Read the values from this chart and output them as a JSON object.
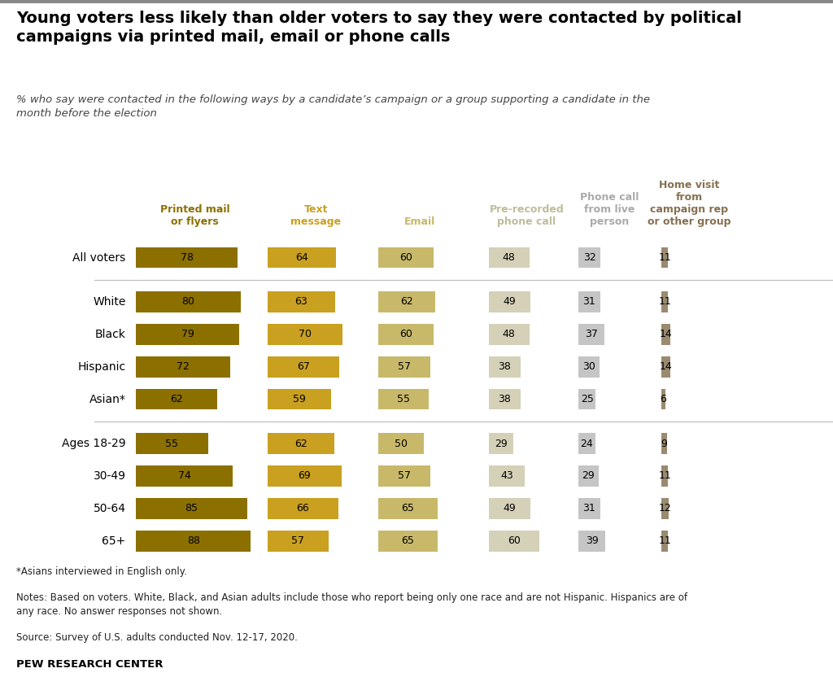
{
  "title": "Young voters less likely than older voters to say they were contacted by political\ncampaigns via printed mail, email or phone calls",
  "subtitle": "% who say were contacted in the following ways by a candidate’s campaign or a group supporting a candidate in the\nmonth before the election",
  "categories": [
    "All voters",
    "White",
    "Black",
    "Hispanic",
    "Asian*",
    "Ages 18-29",
    "30-49",
    "50-64",
    "65+"
  ],
  "column_headers": [
    "Printed mail\nor flyers",
    "Text\nmessage",
    "Email",
    "Pre-recorded\nphone call",
    "Phone call\nfrom live\nperson",
    "Home visit\nfrom\ncampaign rep\nor other group"
  ],
  "col_header_colors": [
    "#8B7000",
    "#C9A020",
    "#C8B86A",
    "#C0BC9C",
    "#AAAAAA",
    "#857050"
  ],
  "data": [
    [
      78,
      64,
      60,
      48,
      32,
      11
    ],
    [
      80,
      63,
      62,
      49,
      31,
      11
    ],
    [
      79,
      70,
      60,
      48,
      37,
      14
    ],
    [
      72,
      67,
      57,
      38,
      30,
      14
    ],
    [
      62,
      59,
      55,
      38,
      25,
      6
    ],
    [
      55,
      62,
      50,
      29,
      24,
      9
    ],
    [
      74,
      69,
      57,
      43,
      29,
      11
    ],
    [
      85,
      66,
      65,
      49,
      31,
      12
    ],
    [
      88,
      57,
      65,
      60,
      39,
      11
    ]
  ],
  "bar_colors": [
    "#8B7000",
    "#C9A020",
    "#C8B86A",
    "#D5D0B8",
    "#C5C5C5",
    "#9A8A70"
  ],
  "footnote1": "*Asians interviewed in English only.",
  "footnote2": "Notes: Based on voters. White, Black, and Asian adults include those who report being only one race and are not Hispanic. Hispanics are of\nany race. No answer responses not shown.",
  "footnote3": "Source: Survey of U.S. adults conducted Nov. 12-17, 2020.",
  "source": "PEW RESEARCH CENTER",
  "bg_color": "#FFFFFF",
  "text_color": "#000000"
}
